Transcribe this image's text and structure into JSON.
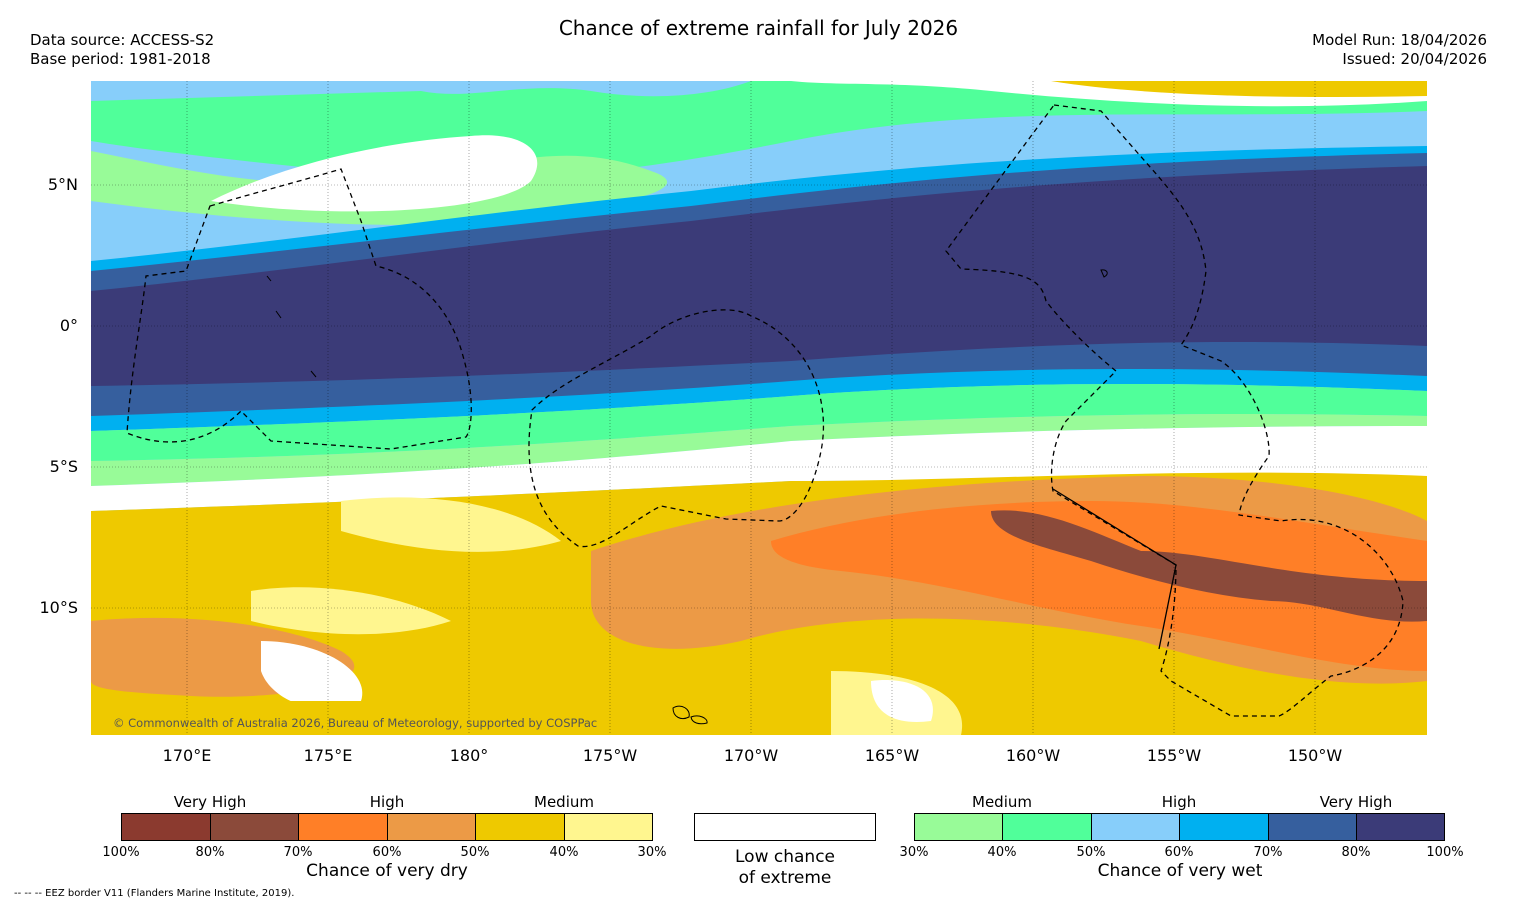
{
  "title": "Chance of extreme rainfall for July 2026",
  "header_left": {
    "line1": "Data source: ACCESS-S2",
    "line2": "Base period: 1981-2018"
  },
  "header_right": {
    "line1": "Model Run: 18/04/2026",
    "line2": "Issued: 20/04/2026"
  },
  "map": {
    "lat_labels": [
      "5°N",
      "0°",
      "5°S",
      "10°S"
    ],
    "lon_labels": [
      "170°E",
      "175°E",
      "180°",
      "175°W",
      "170°W",
      "165°W",
      "160°W",
      "155°W",
      "150°W"
    ],
    "copyright": "© Commonwealth of Australia 2026, Bureau of Meteorology, supported by COSPPac"
  },
  "legend_dry": {
    "group_labels": [
      "Very High",
      "High",
      "Medium"
    ],
    "ticks": [
      "100%",
      "80%",
      "70%",
      "60%",
      "50%",
      "40%",
      "30%"
    ],
    "colors": [
      "#8b3a2f",
      "#8b4a3a",
      "#ff7f27",
      "#ec9a46",
      "#eec900",
      "#fff68f"
    ],
    "title": "Chance of very dry"
  },
  "legend_low": {
    "line1": "Low chance",
    "line2": "of extreme"
  },
  "legend_wet": {
    "group_labels": [
      "Medium",
      "High",
      "Very High"
    ],
    "ticks": [
      "30%",
      "40%",
      "50%",
      "60%",
      "70%",
      "80%",
      "100%"
    ],
    "colors": [
      "#98fb98",
      "#50ff9a",
      "#87cefa",
      "#00b0f0",
      "#365f9e",
      "#3b3b78"
    ],
    "title": "Chance of very wet"
  },
  "footnote": "--  --  -- EEZ border V11 (Flanders Marine Institute, 2019)."
}
